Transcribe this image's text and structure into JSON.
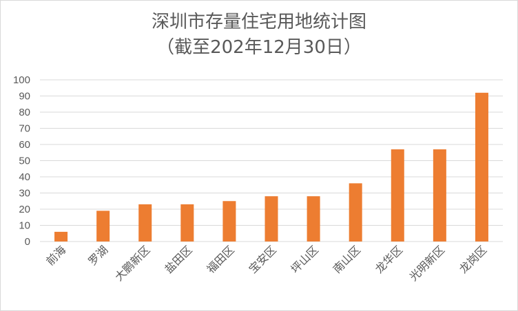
{
  "chart_data": {
    "type": "bar",
    "title": "深圳市存量住宅用地统计图",
    "subtitle": "（截至202年12月30日）",
    "categories": [
      "前海",
      "罗湖",
      "大鹏新区",
      "盐田区",
      "福田区",
      "宝安区",
      "坪山区",
      "南山区",
      "龙华区",
      "光明新区",
      "龙岗区"
    ],
    "values": [
      6,
      19,
      23,
      23,
      25,
      28,
      28,
      36,
      57,
      57,
      92
    ],
    "ylim": [
      0,
      100
    ],
    "yticks": [
      0,
      10,
      20,
      30,
      40,
      50,
      60,
      70,
      80,
      90,
      100
    ],
    "grid": true,
    "bar_color": "#ED7D31",
    "grid_color": "#d9d9d9",
    "text_color": "#595959"
  }
}
